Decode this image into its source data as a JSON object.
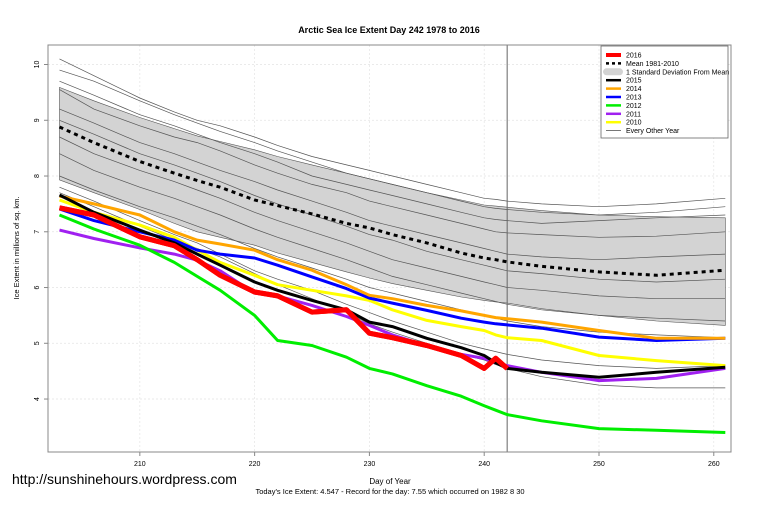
{
  "chart_data": {
    "type": "line",
    "title": "Arctic Sea Ice Extent Day 242 1978 to 2016",
    "xlabel": "Day of Year",
    "ylabel": "Ice Extent in millions of sq. km.",
    "subtitle": "Today's Ice Extent: 4.547  - Record for the day: 7.55 which occurred on 1982 8 30",
    "xlim": [
      202,
      261.5
    ],
    "ylim": [
      3.05,
      10.35
    ],
    "xticks": [
      210,
      220,
      230,
      240,
      250,
      260
    ],
    "yticks": [
      4,
      5,
      6,
      7,
      8,
      9,
      10
    ],
    "grid": true,
    "legend_position": "top-right",
    "vline_day": 242,
    "x": [
      203,
      206,
      210,
      213,
      215,
      217,
      220,
      222,
      225,
      228,
      230,
      232,
      235,
      238,
      240,
      241,
      242,
      245,
      250,
      255,
      261
    ],
    "band": {
      "name": "1 Standard Deviation From Mean",
      "color": "#d3d3d3",
      "upper": [
        9.59,
        9.35,
        9.05,
        8.85,
        8.72,
        8.62,
        8.47,
        8.35,
        8.2,
        8.05,
        7.95,
        7.85,
        7.7,
        7.57,
        7.48,
        7.46,
        7.44,
        7.38,
        7.3,
        7.27,
        7.25
      ],
      "lower": [
        7.93,
        7.7,
        7.4,
        7.15,
        7.0,
        6.9,
        6.76,
        6.62,
        6.45,
        6.28,
        6.17,
        6.07,
        5.95,
        5.83,
        5.77,
        5.74,
        5.72,
        5.62,
        5.5,
        5.4,
        5.32
      ]
    },
    "series": [
      {
        "name": "Mean 1981-2010",
        "color": "#000000",
        "style": "dashed",
        "width": 3,
        "values": [
          8.88,
          8.6,
          8.26,
          8.05,
          7.92,
          7.8,
          7.57,
          7.47,
          7.32,
          7.15,
          7.07,
          6.95,
          6.8,
          6.62,
          6.53,
          6.5,
          6.46,
          6.38,
          6.28,
          6.22,
          6.31
        ]
      },
      {
        "name": "2016",
        "color": "#ff0000",
        "style": "solid",
        "width": 5,
        "values": [
          7.43,
          7.3,
          6.91,
          6.75,
          6.5,
          6.22,
          5.92,
          5.85,
          5.56,
          5.6,
          5.18,
          5.1,
          4.96,
          4.78,
          4.55,
          4.73,
          4.547,
          null,
          null,
          null,
          null
        ]
      },
      {
        "name": "2015",
        "color": "#000000",
        "style": "solid",
        "width": 3,
        "values": [
          7.66,
          7.35,
          7.03,
          6.8,
          6.6,
          6.4,
          6.1,
          5.95,
          5.77,
          5.6,
          5.38,
          5.3,
          5.09,
          4.92,
          4.78,
          4.65,
          4.55,
          4.48,
          4.39,
          4.48,
          4.57
        ]
      },
      {
        "name": "2014",
        "color": "#ffa500",
        "style": "solid",
        "width": 3,
        "values": [
          7.64,
          7.5,
          7.3,
          7.0,
          6.85,
          6.78,
          6.67,
          6.5,
          6.31,
          6.05,
          5.86,
          5.8,
          5.68,
          5.58,
          5.5,
          5.46,
          5.44,
          5.38,
          5.23,
          5.09,
          5.09
        ]
      },
      {
        "name": "2013",
        "color": "#0000ff",
        "style": "solid",
        "width": 3,
        "values": [
          7.41,
          7.2,
          7.0,
          6.85,
          6.67,
          6.6,
          6.53,
          6.4,
          6.19,
          5.98,
          5.81,
          5.72,
          5.59,
          5.45,
          5.38,
          5.35,
          5.33,
          5.27,
          5.11,
          5.05,
          5.09
        ]
      },
      {
        "name": "2012",
        "color": "#00ee00",
        "style": "solid",
        "width": 3,
        "values": [
          7.3,
          7.05,
          6.76,
          6.45,
          6.2,
          5.95,
          5.5,
          5.05,
          4.96,
          4.75,
          4.55,
          4.45,
          4.24,
          4.05,
          3.88,
          3.8,
          3.72,
          3.61,
          3.47,
          3.44,
          3.4
        ]
      },
      {
        "name": "2011",
        "color": "#a020f0",
        "style": "solid",
        "width": 3,
        "values": [
          7.03,
          6.88,
          6.71,
          6.6,
          6.49,
          6.3,
          5.9,
          5.85,
          5.68,
          5.48,
          5.32,
          5.15,
          4.96,
          4.8,
          4.73,
          4.65,
          4.6,
          4.48,
          4.33,
          4.37,
          4.55
        ]
      },
      {
        "name": "2010",
        "color": "#ffff00",
        "style": "solid",
        "width": 3,
        "values": [
          7.57,
          7.35,
          7.12,
          6.9,
          6.67,
          6.45,
          6.22,
          6.05,
          5.95,
          5.85,
          5.77,
          5.6,
          5.41,
          5.3,
          5.23,
          5.15,
          5.1,
          5.05,
          4.78,
          4.69,
          4.6
        ]
      }
    ],
    "other_years": {
      "name": "Every Other Year",
      "color": "#555555",
      "values": [
        [
          10.1,
          9.8,
          9.4,
          9.15,
          9.0,
          8.9,
          8.7,
          8.55,
          8.35,
          8.2,
          8.1,
          8.0,
          7.85,
          7.7,
          7.6,
          7.58,
          7.55,
          7.5,
          7.45,
          7.5,
          7.6
        ],
        [
          9.9,
          9.7,
          9.35,
          9.1,
          8.95,
          8.8,
          8.6,
          8.45,
          8.25,
          8.05,
          7.95,
          7.85,
          7.7,
          7.55,
          7.45,
          7.42,
          7.4,
          7.35,
          7.3,
          7.35,
          7.45
        ],
        [
          9.7,
          9.45,
          9.1,
          8.9,
          8.75,
          8.6,
          8.4,
          8.25,
          8.0,
          7.85,
          7.75,
          7.65,
          7.5,
          7.35,
          7.25,
          7.22,
          7.2,
          7.15,
          7.2,
          7.25,
          7.3
        ],
        [
          9.55,
          9.2,
          8.9,
          8.7,
          8.6,
          8.45,
          8.2,
          8.05,
          7.85,
          7.7,
          7.55,
          7.45,
          7.3,
          7.15,
          7.05,
          7.0,
          6.98,
          6.95,
          6.9,
          6.92,
          7.0
        ],
        [
          9.2,
          8.95,
          8.6,
          8.4,
          8.25,
          8.1,
          7.9,
          7.75,
          7.55,
          7.35,
          7.2,
          7.1,
          6.95,
          6.8,
          6.7,
          6.65,
          6.6,
          6.55,
          6.5,
          6.55,
          6.6
        ],
        [
          9.0,
          8.75,
          8.4,
          8.2,
          8.05,
          7.9,
          7.65,
          7.5,
          7.3,
          7.1,
          6.95,
          6.85,
          6.65,
          6.5,
          6.4,
          6.35,
          6.3,
          6.25,
          6.15,
          6.1,
          6.15
        ],
        [
          8.7,
          8.4,
          8.1,
          7.9,
          7.75,
          7.6,
          7.35,
          7.2,
          7.0,
          6.8,
          6.65,
          6.5,
          6.35,
          6.2,
          6.1,
          6.05,
          6.0,
          5.95,
          5.85,
          5.8,
          5.8
        ],
        [
          8.4,
          8.1,
          7.8,
          7.6,
          7.45,
          7.3,
          7.05,
          6.9,
          6.7,
          6.5,
          6.35,
          6.2,
          6.05,
          5.9,
          5.8,
          5.75,
          5.7,
          5.6,
          5.5,
          5.45,
          5.4
        ],
        [
          8.0,
          7.75,
          7.45,
          7.25,
          7.1,
          6.95,
          6.7,
          6.55,
          6.35,
          6.15,
          6.0,
          5.9,
          5.75,
          5.6,
          5.5,
          5.45,
          5.4,
          5.3,
          5.2,
          5.15,
          5.1
        ],
        [
          7.8,
          7.55,
          7.2,
          6.95,
          6.8,
          6.6,
          6.3,
          6.15,
          5.95,
          5.7,
          5.55,
          5.4,
          5.2,
          5.0,
          4.9,
          4.85,
          4.8,
          4.7,
          4.6,
          4.55,
          4.6
        ],
        [
          7.7,
          7.45,
          7.1,
          6.85,
          6.7,
          6.55,
          6.25,
          6.05,
          5.8,
          5.55,
          5.35,
          5.2,
          5.0,
          4.8,
          4.7,
          4.62,
          4.55,
          4.4,
          4.25,
          4.2,
          4.2
        ]
      ]
    }
  },
  "footer": {
    "url": "http://sunshinehours.wordpress.com"
  }
}
